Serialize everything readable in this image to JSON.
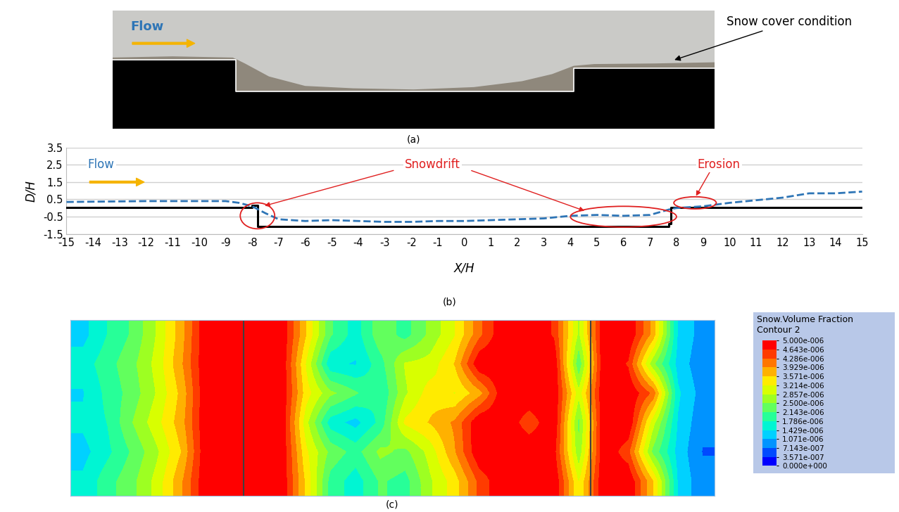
{
  "chart_data": [
    {
      "type": "diagram",
      "title": "(a)",
      "annotations": [
        "Flow",
        "Snow cover condition"
      ]
    },
    {
      "type": "line",
      "title": "(b)",
      "xlabel": "X/H",
      "ylabel": "D/H",
      "xlim": [
        -15,
        15
      ],
      "xticks": [
        -15,
        -14,
        -13,
        -12,
        -11,
        -10,
        -9,
        -8,
        -7,
        -6,
        -5,
        -4,
        -3,
        -2,
        -1,
        0,
        1,
        2,
        3,
        4,
        5,
        6,
        7,
        8,
        9,
        10,
        11,
        12,
        13,
        14,
        15
      ],
      "ylim": [
        -1.5,
        3.5
      ],
      "yticks": [
        -1.5,
        -0.5,
        0.5,
        1.5,
        2.5,
        3.5
      ],
      "grid": "y",
      "series": [
        {
          "color": "#000000",
          "line_style": "solid",
          "x": [
            -15,
            -8,
            -8,
            -7.8,
            -7.8,
            7.7,
            7.7,
            7.8,
            7.8,
            15
          ],
          "values": [
            0.05,
            0.05,
            0.15,
            0.15,
            -1.05,
            -1.05,
            -0.9,
            -0.9,
            0.05,
            0.05
          ]
        },
        {
          "color": "#2e75b6",
          "line_style": "dashed",
          "x": [
            -15,
            -12,
            -10,
            -9,
            -8.5,
            -8,
            -7.5,
            -7,
            -6,
            -5,
            -4,
            -3,
            -2,
            -1,
            0,
            1,
            2,
            3,
            4,
            5,
            6,
            7,
            7.8,
            8,
            9,
            10,
            11,
            12,
            13,
            14,
            15
          ],
          "values": [
            0.35,
            0.4,
            0.4,
            0.4,
            0.3,
            0.1,
            -0.3,
            -0.65,
            -0.75,
            -0.7,
            -0.75,
            -0.8,
            -0.8,
            -0.75,
            -0.75,
            -0.7,
            -0.65,
            -0.6,
            -0.45,
            -0.4,
            -0.45,
            -0.4,
            -0.05,
            0.0,
            0.1,
            0.3,
            0.45,
            0.6,
            0.85,
            0.85,
            0.95
          ]
        }
      ],
      "annotations": [
        "Flow",
        "Snowdrift",
        "Erosion"
      ]
    },
    {
      "type": "heatmap",
      "title": "(c)",
      "tick_labels": false,
      "colorbar_title": [
        "Snow.Volume Fraction",
        "Contour 2"
      ],
      "clim": [
        0,
        5e-06
      ],
      "cticks": [
        {
          "value": 0,
          "label": "0.000e+000"
        },
        {
          "value": 3.571e-07,
          "label": "3.571e-007"
        },
        {
          "value": 7.143e-07,
          "label": "7.143e-007"
        },
        {
          "value": 1.071e-06,
          "label": "1.071e-006"
        },
        {
          "value": 1.429e-06,
          "label": "1.429e-006"
        },
        {
          "value": 1.786e-06,
          "label": "1.786e-006"
        },
        {
          "value": 2.143e-06,
          "label": "2.143e-006"
        },
        {
          "value": 2.5e-06,
          "label": "2.500e-006"
        },
        {
          "value": 2.857e-06,
          "label": "2.857e-006"
        },
        {
          "value": 3.214e-06,
          "label": "3.214e-006"
        },
        {
          "value": 3.571e-06,
          "label": "3.571e-006"
        },
        {
          "value": 3.929e-06,
          "label": "3.929e-006"
        },
        {
          "value": 4.286e-06,
          "label": "4.286e-006"
        },
        {
          "value": 4.643e-06,
          "label": "4.643e-006"
        },
        {
          "value": 5e-06,
          "label": "5.000e-006"
        }
      ],
      "cells": [
        [
          1.3e-06,
          1.8e-06,
          2.2e-06,
          2.9e-06,
          3.8e-06,
          5e-06,
          5e-06,
          5e-06,
          5e-06,
          3.6e-06,
          2.2e-06,
          1.6e-06,
          2.4e-06,
          2e-06,
          2.6e-06,
          3.2e-06,
          4.2e-06,
          5e-06,
          5e-06,
          4.6e-06,
          2.8e-06,
          5e-06,
          5e-06,
          3.8e-06,
          1.4e-06,
          9e-07
        ],
        [
          1.6e-06,
          2e-06,
          2.4e-06,
          3e-06,
          3.9e-06,
          5e-06,
          5e-06,
          5e-06,
          5e-06,
          3.2e-06,
          1.5e-06,
          1.4e-06,
          2e-06,
          2.9e-06,
          3e-06,
          3.6e-06,
          5e-06,
          5e-06,
          5e-06,
          5e-06,
          2.2e-06,
          5e-06,
          4.6e-06,
          2.6e-06,
          1.3e-06,
          8e-07
        ],
        [
          1.4e-06,
          1.9e-06,
          2.3e-06,
          2.9e-06,
          3.7e-06,
          5e-06,
          5e-06,
          5e-06,
          5e-06,
          3.4e-06,
          2.6e-06,
          2.2e-06,
          1.8e-06,
          2.8e-06,
          3.4e-06,
          3.2e-06,
          3.8e-06,
          5e-06,
          5e-06,
          5e-06,
          3e-06,
          5e-06,
          5e-06,
          4.2e-06,
          1.5e-06,
          9e-07
        ],
        [
          1.5e-06,
          1.8e-06,
          2.5e-06,
          3.1e-06,
          3.8e-06,
          5e-06,
          5e-06,
          5e-06,
          5e-06,
          3e-06,
          1.6e-06,
          1.3e-06,
          1.9e-06,
          3.3e-06,
          3.6e-06,
          4e-06,
          5e-06,
          5e-06,
          4.4e-06,
          5e-06,
          2.4e-06,
          5e-06,
          5e-06,
          3e-06,
          1.4e-06,
          8e-07
        ],
        [
          1.3e-06,
          1.7e-06,
          2.2e-06,
          2.8e-06,
          3.6e-06,
          5e-06,
          5e-06,
          5e-06,
          5e-06,
          3.3e-06,
          2.4e-06,
          2e-06,
          2.6e-06,
          2.4e-06,
          3e-06,
          3.9e-06,
          5e-06,
          5e-06,
          5e-06,
          4.8e-06,
          2.6e-06,
          5e-06,
          4.4e-06,
          2.4e-06,
          1.3e-06,
          7e-07
        ],
        [
          1.5e-06,
          2e-06,
          2.4e-06,
          3e-06,
          3.9e-06,
          5e-06,
          5e-06,
          5e-06,
          5e-06,
          3.5e-06,
          2e-06,
          1.6e-06,
          2.2e-06,
          2e-06,
          2.8e-06,
          3.4e-06,
          4.4e-06,
          5e-06,
          5e-06,
          5e-06,
          3.2e-06,
          5e-06,
          5e-06,
          3.6e-06,
          1.4e-06,
          8e-07
        ]
      ]
    }
  ]
}
